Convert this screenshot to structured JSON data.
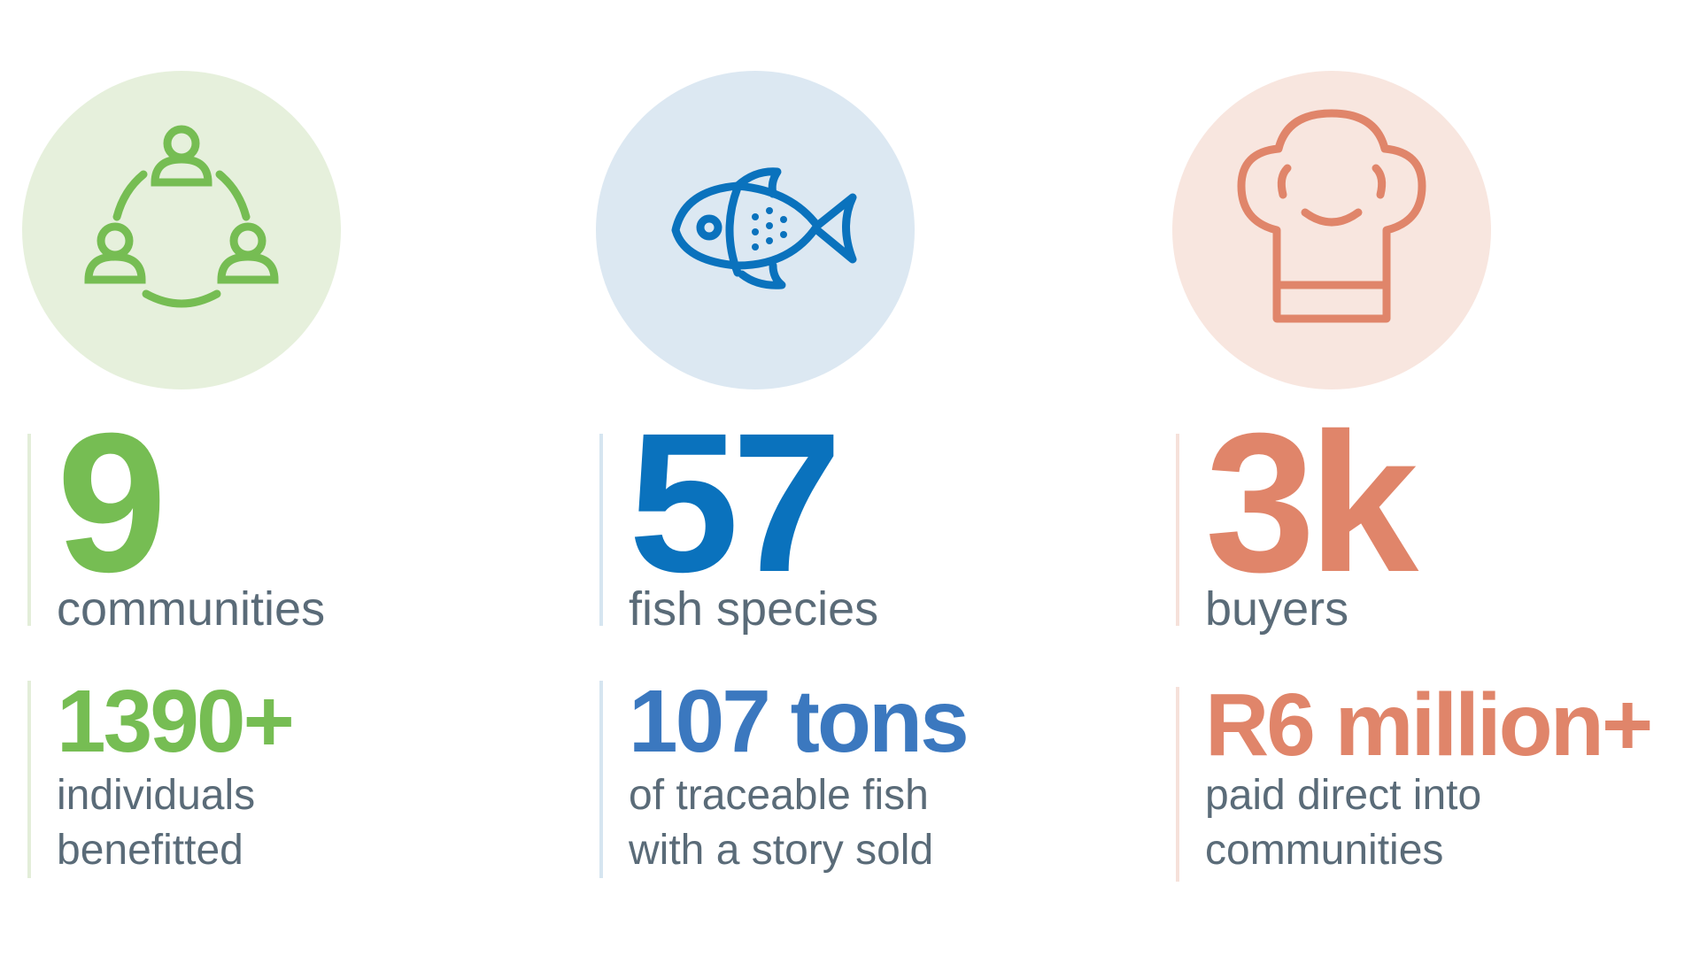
{
  "stats": [
    {
      "number": "9",
      "label": "communities",
      "sub_number": "1390+",
      "sub_label": [
        "individuals",
        "benefitted"
      ]
    },
    {
      "number": "57",
      "label": "fish species",
      "sub_number": "107 tons",
      "sub_label": [
        "of traceable fish",
        "with a story sold"
      ]
    },
    {
      "number": "3k",
      "label": "buyers",
      "sub_number": "R6 million+",
      "sub_label": [
        "paid direct into",
        "communities"
      ]
    }
  ]
}
